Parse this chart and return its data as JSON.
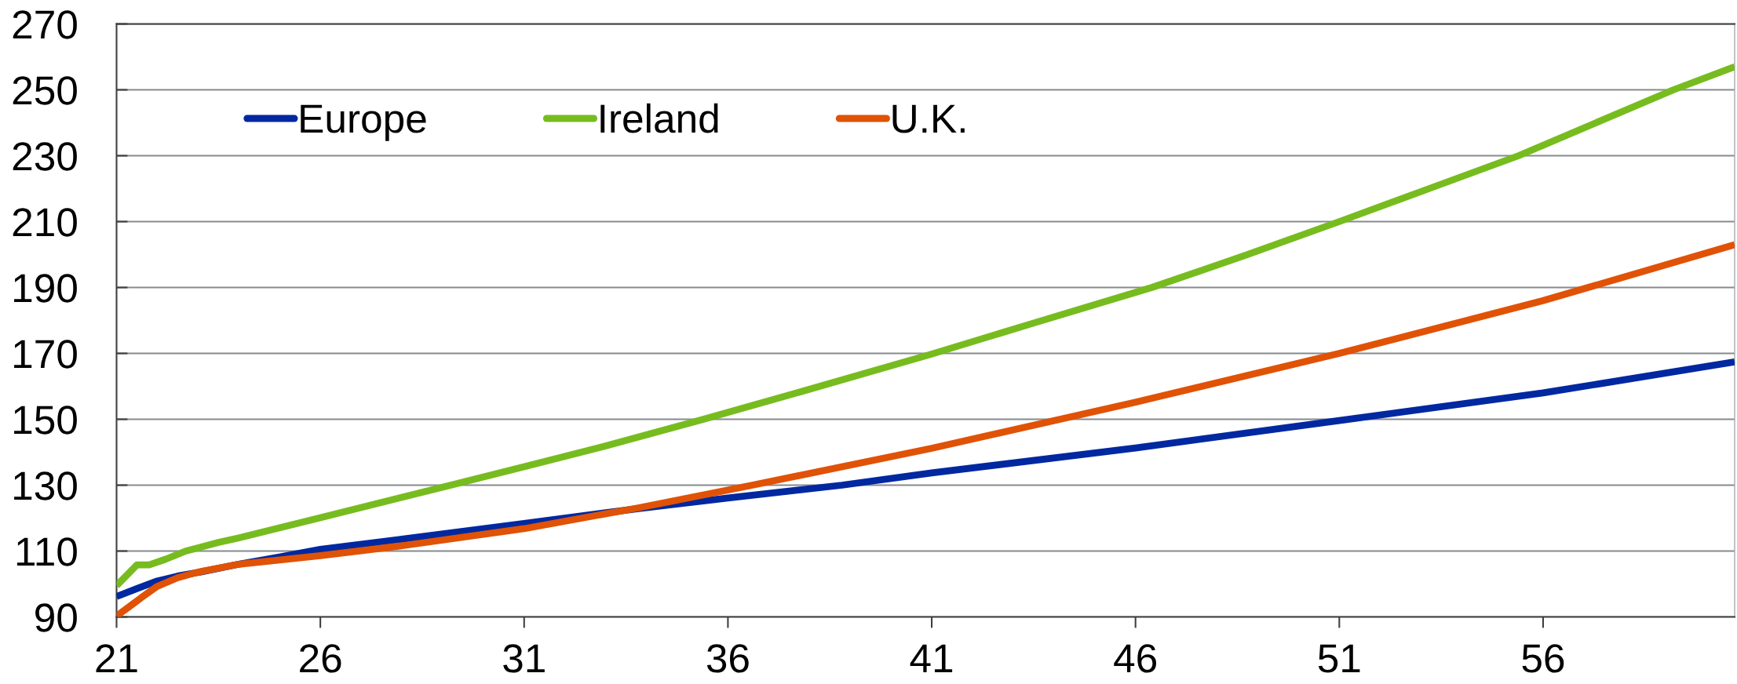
{
  "chart_data": {
    "type": "line",
    "xlim": [
      21,
      60.7
    ],
    "xticks": [
      21,
      26,
      31,
      36,
      41,
      46,
      51,
      56
    ],
    "ylim": [
      90,
      270
    ],
    "yticks": [
      90,
      110,
      130,
      150,
      170,
      190,
      210,
      230,
      250,
      270
    ],
    "grid": "y",
    "legend": "top left",
    "line_style": "solid",
    "series": [
      {
        "name": "Europe",
        "color": "#0028a0",
        "x": [
          21,
          21.5,
          22,
          22.5,
          23,
          24,
          25,
          26,
          28,
          31,
          33.8,
          36,
          38.8,
          41,
          46,
          51,
          56,
          60.7
        ],
        "values": [
          96.2,
          98.6,
          100.9,
          102.4,
          103.5,
          106.0,
          108.2,
          110.5,
          113.6,
          118.4,
          122.9,
          126.1,
          130,
          133.7,
          141.3,
          149.6,
          158.0,
          167.4
        ]
      },
      {
        "name": "Ireland",
        "color": "#77bc1f",
        "x": [
          21,
          21.5,
          21.8,
          22.2,
          22.7,
          23.5,
          24,
          26,
          29.2,
          31,
          33,
          35.4,
          38,
          41,
          43.5,
          46.4,
          48.7,
          51,
          53.2,
          55.4,
          57.3,
          59.2,
          60.7
        ],
        "values": [
          99.5,
          105.8,
          105.8,
          107.5,
          110,
          112.6,
          114,
          120.1,
          130,
          135.6,
          141.9,
          150,
          159.1,
          169.8,
          179.2,
          190,
          199.8,
          210,
          220,
          230,
          240,
          250,
          257
        ]
      },
      {
        "name": "U.K.",
        "color": "#e05206",
        "x": [
          21,
          21.3,
          21.6,
          22,
          22.5,
          23,
          24,
          25,
          26,
          28,
          31,
          33.8,
          36.6,
          41,
          46,
          51,
          56,
          60.7
        ],
        "values": [
          90.3,
          93,
          95.8,
          99.3,
          101.9,
          103.6,
          106.0,
          107.3,
          108.6,
          111.6,
          116.8,
          123.1,
          130,
          141.2,
          155.2,
          170,
          186,
          203
        ]
      }
    ]
  }
}
